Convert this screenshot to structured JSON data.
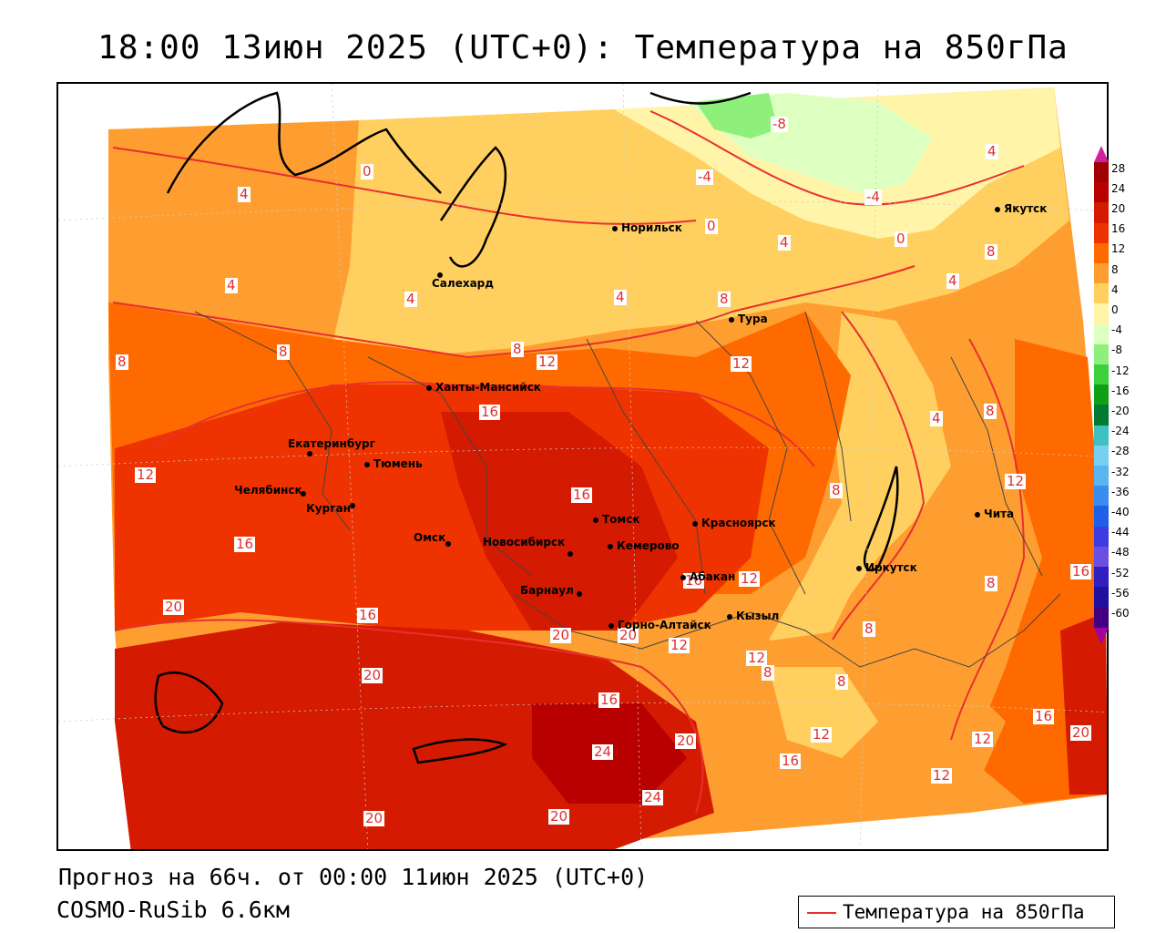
{
  "title": "18:00 13июн 2025 (UTC+0): Температура на 850гПа",
  "forecast_line": "Прогноз на 66ч. от 00:00 11июн 2025 (UTC+0)",
  "model_line": "COSMO-RuSib 6.6км",
  "legend_label": "Температура на 850гПа",
  "colorbar": {
    "ticks": [
      "28",
      "24",
      "20",
      "16",
      "12",
      "8",
      "4",
      "0",
      "-4",
      "-8",
      "-12",
      "-16",
      "-20",
      "-24",
      "-28",
      "-32",
      "-36",
      "-40",
      "-44",
      "-48",
      "-52",
      "-56",
      "-60"
    ],
    "colors": [
      "#a00000",
      "#b80000",
      "#d41a00",
      "#ee3300",
      "#ff6a00",
      "#ff9e30",
      "#ffd060",
      "#fff4a8",
      "#ddffc0",
      "#8ef07a",
      "#3cd03c",
      "#10a018",
      "#007a30",
      "#40c0c0",
      "#78d0f0",
      "#5ab4f0",
      "#3c8cf0",
      "#2060e8",
      "#3c3ce0",
      "#6a50e0",
      "#3020c0",
      "#2010a0",
      "#400080",
      "#a000a0"
    ]
  },
  "cities": [
    {
      "name": "Норильск"
    },
    {
      "name": "Салехард"
    },
    {
      "name": "Якутск"
    },
    {
      "name": "Тура"
    },
    {
      "name": "Ханты-Мансийск"
    },
    {
      "name": "Екатеринбург"
    },
    {
      "name": "Тюмень"
    },
    {
      "name": "Челябинск"
    },
    {
      "name": "Курган"
    },
    {
      "name": "Омск"
    },
    {
      "name": "Новосибирск"
    },
    {
      "name": "Томск"
    },
    {
      "name": "Кемерово"
    },
    {
      "name": "Красноярск"
    },
    {
      "name": "Абакан"
    },
    {
      "name": "Барнаул"
    },
    {
      "name": "Горно-Алтайск"
    },
    {
      "name": "Кызыл"
    },
    {
      "name": "Иркутск"
    },
    {
      "name": "Чита"
    }
  ],
  "contour_labels": [
    "-8",
    "-4",
    "-4",
    "0",
    "0",
    "0",
    "4",
    "4",
    "4",
    "4",
    "4",
    "4",
    "4",
    "4",
    "8",
    "8",
    "8",
    "8",
    "8",
    "8",
    "8",
    "8",
    "8",
    "8",
    "8",
    "12",
    "12",
    "12",
    "12",
    "12",
    "12",
    "12",
    "12",
    "12",
    "12",
    "16",
    "16",
    "16",
    "16",
    "16",
    "16",
    "16",
    "16",
    "16",
    "20",
    "20",
    "20",
    "20",
    "20",
    "20",
    "20",
    "20",
    "24",
    "24"
  ],
  "colors": {
    "contour": "#e83030",
    "city": "#000000"
  }
}
